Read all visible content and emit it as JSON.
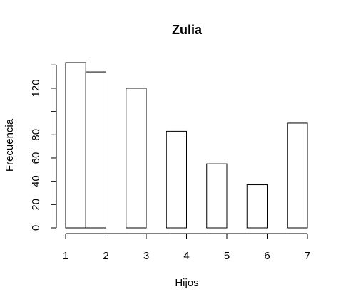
{
  "chart_data": {
    "type": "bar",
    "title": "Zulia",
    "xlabel": "Hijos",
    "ylabel": "Frecuencia",
    "bins": [
      {
        "start": 1.0,
        "end": 1.5,
        "value": 142
      },
      {
        "start": 1.5,
        "end": 2.0,
        "value": 134
      },
      {
        "start": 2.0,
        "end": 2.5,
        "value": 0
      },
      {
        "start": 2.5,
        "end": 3.0,
        "value": 120
      },
      {
        "start": 3.0,
        "end": 3.5,
        "value": 0
      },
      {
        "start": 3.5,
        "end": 4.0,
        "value": 83
      },
      {
        "start": 4.0,
        "end": 4.5,
        "value": 0
      },
      {
        "start": 4.5,
        "end": 5.0,
        "value": 55
      },
      {
        "start": 5.0,
        "end": 5.5,
        "value": 0
      },
      {
        "start": 5.5,
        "end": 6.0,
        "value": 37
      },
      {
        "start": 6.0,
        "end": 6.5,
        "value": 0
      },
      {
        "start": 6.5,
        "end": 7.0,
        "value": 90
      }
    ],
    "xlim": [
      1,
      7
    ],
    "ylim": [
      0,
      142
    ],
    "x_ticks": [
      1,
      2,
      3,
      4,
      5,
      6,
      7
    ],
    "y_ticks": [
      0,
      20,
      40,
      60,
      80,
      100,
      120,
      140
    ],
    "y_tick_labels": [
      "0",
      "20",
      "40",
      "60",
      "80",
      "",
      "120",
      ""
    ],
    "grid": false,
    "colors": {
      "bar_fill": "#ffffff",
      "bar_stroke": "#000000"
    }
  }
}
